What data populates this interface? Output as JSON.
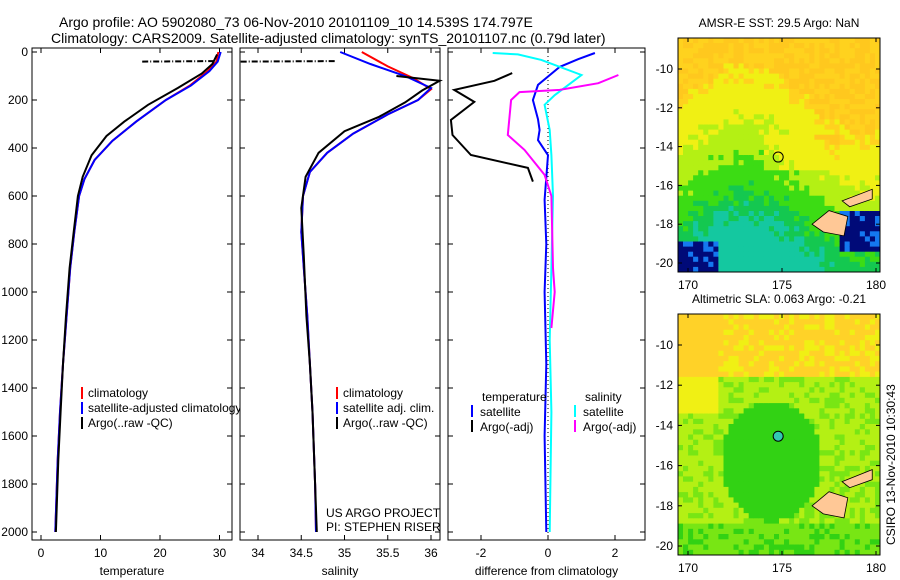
{
  "title_line1": "Argo profile: AO 5902080_73 06-Nov-2010 20101109_10 14.539S 174.797E",
  "title_line2": "Climatology: CARS2009. Satellite-adjusted climatology: synTS_20101107.nc (0.79d later)",
  "footer_vertical": "CSIRO 13-Nov-2010 10:30:43",
  "credit_line1": "US ARGO PROJECT",
  "credit_line2": "PI: STEPHEN RISER",
  "colors": {
    "climatology": "#ff0000",
    "satellite": "#0000ff",
    "argo": "#000000",
    "sal_satellite": "#00ffff",
    "sal_argo": "#ff00ff"
  },
  "chart_data": [
    {
      "type": "line",
      "xlabel": "temperature",
      "ylabel": "depth",
      "xlim": [
        -2,
        32
      ],
      "ylim": [
        2000,
        0
      ],
      "xticks": [
        "0",
        "10",
        "20",
        "30"
      ],
      "xtick_values": [
        0,
        10,
        20,
        30
      ],
      "yticks": [
        "0",
        "200",
        "400",
        "600",
        "800",
        "1000",
        "1200",
        "1400",
        "1600",
        "1800",
        "2000"
      ],
      "legend": [
        "climatology",
        "satellite-adjusted climatology",
        "Argo(..raw -QC)"
      ],
      "series": [
        {
          "name": "climatology",
          "color": "#ff0000",
          "points": [
            [
              29.8,
              0
            ],
            [
              29.5,
              40
            ],
            [
              28,
              80
            ],
            [
              25,
              140
            ],
            [
              21,
              200
            ],
            [
              16,
              290
            ],
            [
              12,
              370
            ],
            [
              9,
              450
            ],
            [
              7.3,
              530
            ],
            [
              6.4,
              600
            ],
            [
              5.6,
              750
            ],
            [
              4.9,
              900
            ],
            [
              4.3,
              1100
            ],
            [
              3.7,
              1300
            ],
            [
              3.2,
              1500
            ],
            [
              2.8,
              1700
            ],
            [
              2.4,
              2000
            ]
          ]
        },
        {
          "name": "satellite-adjusted climatology",
          "color": "#0000ff",
          "points": [
            [
              30.2,
              0
            ],
            [
              29.7,
              40
            ],
            [
              28.3,
              80
            ],
            [
              25.2,
              140
            ],
            [
              21,
              200
            ],
            [
              16,
              290
            ],
            [
              12,
              370
            ],
            [
              9,
              450
            ],
            [
              7.3,
              530
            ],
            [
              6.4,
              600
            ],
            [
              5.6,
              750
            ],
            [
              4.9,
              900
            ],
            [
              4.3,
              1100
            ],
            [
              3.7,
              1300
            ],
            [
              3.2,
              1500
            ],
            [
              2.8,
              1700
            ],
            [
              2.4,
              2000
            ]
          ]
        },
        {
          "name": "Argo(..raw -QC)",
          "color": "#000000",
          "points": [
            [
              29.6,
              10
            ],
            [
              28.8,
              50
            ],
            [
              27,
              90
            ],
            [
              23,
              150
            ],
            [
              18,
              220
            ],
            [
              14,
              290
            ],
            [
              11,
              350
            ],
            [
              8.5,
              430
            ],
            [
              7,
              520
            ],
            [
              6.2,
              600
            ],
            [
              5.5,
              750
            ],
            [
              4.8,
              900
            ],
            [
              4.2,
              1100
            ],
            [
              3.7,
              1300
            ],
            [
              3.3,
              1500
            ],
            [
              2.9,
              1700
            ],
            [
              2.5,
              2000
            ]
          ]
        },
        {
          "name": "Argo surface segment",
          "color": "#000000",
          "dash": true,
          "points": [
            [
              17,
              40
            ],
            [
              29,
              38
            ]
          ]
        }
      ]
    },
    {
      "type": "line",
      "xlabel": "salinity",
      "xlim": [
        33.8,
        36.2
      ],
      "ylim": [
        2000,
        0
      ],
      "xticks": [
        "34",
        "34.5",
        "35",
        "35.5",
        "36"
      ],
      "xtick_values": [
        34,
        34.5,
        35,
        35.5,
        36
      ],
      "legend": [
        "climatology",
        "satellite adj. clim.",
        "Argo(..raw -QC)"
      ],
      "series": [
        {
          "name": "climatology",
          "color": "#ff0000",
          "points": [
            [
              35.2,
              0
            ],
            [
              35.5,
              60
            ],
            [
              35.8,
              110
            ],
            [
              36,
              155
            ],
            [
              35.85,
              200
            ],
            [
              35.5,
              260
            ],
            [
              35.1,
              340
            ],
            [
              34.8,
              420
            ],
            [
              34.6,
              500
            ],
            [
              34.52,
              600
            ],
            [
              34.5,
              750
            ],
            [
              34.53,
              900
            ],
            [
              34.57,
              1100
            ],
            [
              34.6,
              1300
            ],
            [
              34.63,
              1500
            ],
            [
              34.66,
              1800
            ],
            [
              34.67,
              2000
            ]
          ]
        },
        {
          "name": "satellite adj. clim.",
          "color": "#0000ff",
          "points": [
            [
              34.95,
              0
            ],
            [
              35.3,
              50
            ],
            [
              35.7,
              100
            ],
            [
              36,
              150
            ],
            [
              35.85,
              200
            ],
            [
              35.5,
              260
            ],
            [
              35.1,
              340
            ],
            [
              34.8,
              420
            ],
            [
              34.6,
              500
            ],
            [
              34.52,
              600
            ],
            [
              34.5,
              750
            ],
            [
              34.53,
              900
            ],
            [
              34.57,
              1100
            ],
            [
              34.6,
              1300
            ],
            [
              34.63,
              1500
            ],
            [
              34.66,
              1800
            ],
            [
              34.67,
              2000
            ]
          ]
        },
        {
          "name": "Argo(..raw -QC)",
          "color": "#000000",
          "points": [
            [
              35.6,
              100
            ],
            [
              36.1,
              120
            ],
            [
              35.9,
              160
            ],
            [
              35.7,
              210
            ],
            [
              35.4,
              270
            ],
            [
              35.0,
              330
            ],
            [
              34.7,
              420
            ],
            [
              34.55,
              520
            ],
            [
              34.5,
              650
            ],
            [
              34.53,
              850
            ],
            [
              34.56,
              1100
            ],
            [
              34.6,
              1300
            ],
            [
              34.63,
              1500
            ],
            [
              34.66,
              1800
            ],
            [
              34.68,
              2000
            ]
          ]
        },
        {
          "name": "Argo surface segment",
          "color": "#000000",
          "dash": true,
          "points": [
            [
              33.8,
              40
            ],
            [
              34.9,
              38
            ]
          ]
        }
      ]
    },
    {
      "type": "line",
      "xlabel": "difference from climatology",
      "xlim": [
        -2.5,
        3.0
      ],
      "ylim": [
        2000,
        0
      ],
      "xticks": [
        "-2",
        "0",
        "2"
      ],
      "xtick_values": [
        -2,
        0,
        2
      ],
      "legend_temperature": {
        "title": "temperature",
        "items": [
          "satellite",
          "Argo(-adj)"
        ]
      },
      "legend_salinity": {
        "title": "salinity",
        "items": [
          "satellite",
          "Argo(-adj)"
        ]
      },
      "series": [
        {
          "name": "temperature satellite",
          "color": "#0000ff",
          "points": [
            [
              1.4,
              4
            ],
            [
              0.9,
              30
            ],
            [
              0.35,
              62
            ],
            [
              -0.3,
              137
            ],
            [
              -0.45,
              200
            ],
            [
              -0.3,
              280
            ],
            [
              -0.25,
              325
            ],
            [
              -0.3,
              367
            ],
            [
              0,
              430
            ],
            [
              -0.1,
              616
            ],
            [
              -0.05,
              800
            ],
            [
              -0.1,
              1000
            ],
            [
              -0.05,
              1300
            ],
            [
              -0.1,
              1600
            ],
            [
              -0.05,
              2000
            ]
          ]
        },
        {
          "name": "temperature Argo(-adj)",
          "color": "#000000",
          "points": [
            [
              -1.07,
              88
            ],
            [
              -1.6,
              120
            ],
            [
              -2.8,
              158
            ],
            [
              -2.2,
              208
            ],
            [
              -2.9,
              283
            ],
            [
              -2.85,
              346
            ],
            [
              -2.3,
              429
            ],
            [
              -0.6,
              483
            ],
            [
              -0.45,
              540
            ]
          ]
        },
        {
          "name": "salinity satellite",
          "color": "#00ffff",
          "points": [
            [
              -1.65,
              4
            ],
            [
              -0.9,
              10
            ],
            [
              -0.2,
              33
            ],
            [
              1.0,
              96
            ],
            [
              0.2,
              180
            ],
            [
              -0.1,
              220
            ],
            [
              0.05,
              325
            ],
            [
              0.1,
              430
            ],
            [
              0.15,
              600
            ],
            [
              0.1,
              900
            ],
            [
              0.05,
              1200
            ],
            [
              0.1,
              1500
            ],
            [
              0.05,
              2000
            ]
          ]
        },
        {
          "name": "salinity Argo(-adj)",
          "color": "#ff00ff",
          "points": [
            [
              2.1,
              96
            ],
            [
              1.5,
              130
            ],
            [
              0.35,
              158
            ],
            [
              -0.85,
              167
            ],
            [
              -1.1,
              200
            ],
            [
              -1.2,
              346
            ],
            [
              -0.7,
              408
            ],
            [
              -0.1,
              512
            ],
            [
              0.1,
              600
            ],
            [
              0.15,
              900
            ],
            [
              0.2,
              1000
            ],
            [
              0.1,
              1150
            ]
          ]
        }
      ]
    },
    {
      "type": "heatmap",
      "title": "AMSR-E SST: 29.5 Argo: NaN",
      "xlim": [
        169.5,
        180
      ],
      "ylim": [
        -20.5,
        -8.5
      ],
      "xticks": [
        "170",
        "175",
        "180"
      ],
      "yticks": [
        "-10",
        "-12",
        "-14",
        "-16",
        "-18",
        "-20"
      ],
      "marker": {
        "lon": 174.797,
        "lat": -14.539,
        "filled": false
      }
    },
    {
      "type": "heatmap",
      "title": "Altimetric SLA: 0.063 Argo: -0.21",
      "xlim": [
        169.5,
        180
      ],
      "ylim": [
        -20.5,
        -8.5
      ],
      "xticks": [
        "170",
        "175",
        "180"
      ],
      "yticks": [
        "-10",
        "-12",
        "-14",
        "-16",
        "-18",
        "-20"
      ],
      "marker": {
        "lon": 174.797,
        "lat": -14.539,
        "filled": true
      }
    }
  ]
}
